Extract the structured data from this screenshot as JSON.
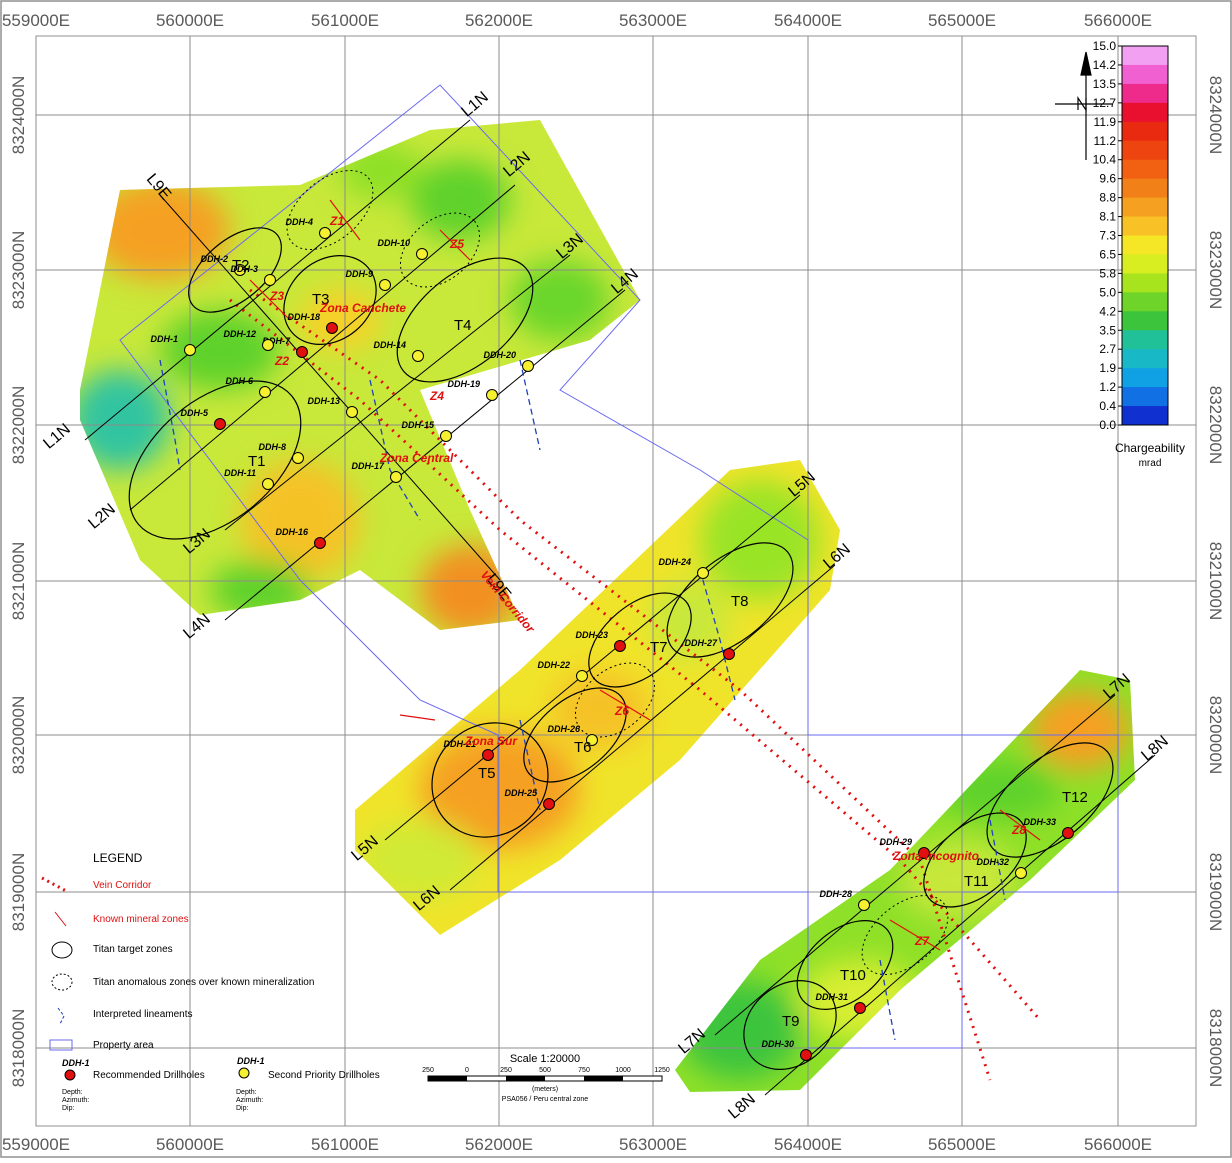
{
  "map": {
    "easting_labels": [
      "559000E",
      "560000E",
      "561000E",
      "562000E",
      "563000E",
      "564000E",
      "565000E",
      "566000E"
    ],
    "northing_labels": [
      "8318000N",
      "8319000N",
      "8320000N",
      "8321000N",
      "8322000N",
      "8323000N",
      "8324000N"
    ],
    "north_arrow_icon": "north-arrow-icon"
  },
  "colorbar": {
    "ticks": [
      "15.0",
      "14.2",
      "13.5",
      "12.7",
      "11.9",
      "11.2",
      "10.4",
      "9.6",
      "8.8",
      "8.1",
      "7.3",
      "6.5",
      "5.8",
      "5.0",
      "4.2",
      "3.5",
      "2.7",
      "1.9",
      "1.2",
      "0.4",
      "0.0"
    ],
    "colors": [
      "#f2a0f2",
      "#f060d0",
      "#ee2a8a",
      "#e8102e",
      "#ea2a10",
      "#ee4410",
      "#f26012",
      "#f28018",
      "#f5a020",
      "#f8c226",
      "#f5e626",
      "#d8ee20",
      "#a8e41e",
      "#6ed42a",
      "#3cc43c",
      "#20c098",
      "#18b8c6",
      "#10a0e4",
      "#1070e4",
      "#1030d0"
    ],
    "title": "Chargeability",
    "unit": "mrad"
  },
  "lines": [
    {
      "label": "L1N"
    },
    {
      "label": "L2N"
    },
    {
      "label": "L3N"
    },
    {
      "label": "L4N"
    },
    {
      "label": "L9E"
    },
    {
      "label": "L5N"
    },
    {
      "label": "L6N"
    },
    {
      "label": "L7N"
    },
    {
      "label": "L8N"
    }
  ],
  "targets": [
    "T1",
    "T2",
    "T3",
    "T4",
    "T5",
    "T6",
    "T7",
    "T8",
    "T9",
    "T10",
    "T11",
    "T12"
  ],
  "zones": [
    "Zona Canchete",
    "Zona Central",
    "Zona Sur",
    "Zona Incognito",
    "Vein Corridor"
  ],
  "zone_codes": [
    "Z1",
    "Z2",
    "Z3",
    "Z4",
    "Z5",
    "Z6",
    "Z7",
    "Z8"
  ],
  "drillholes": [
    "DDH-1",
    "DDH-2",
    "DDH-3",
    "DDH-4",
    "DDH-5",
    "DDH-6",
    "DDH-7",
    "DDH-8",
    "DDH-9",
    "DDH-10",
    "DDH-11",
    "DDH-12",
    "DDH-13",
    "DDH-14",
    "DDH-15",
    "DDH-16",
    "DDH-17",
    "DDH-18",
    "DDH-19",
    "DDH-20",
    "DDH-21",
    "DDH-22",
    "DDH-23",
    "DDH-24",
    "DDH-25",
    "DDH-26",
    "DDH-27",
    "DDH-28",
    "DDH-29",
    "DDH-30",
    "DDH-31",
    "DDH-32",
    "DDH-33"
  ],
  "legend": {
    "title": "LEGEND",
    "items": [
      {
        "label": "Vein Corridor"
      },
      {
        "label": "Known mineral zones"
      },
      {
        "label": "Titan target zones"
      },
      {
        "label": "Titan anomalous zones over known mineralization"
      },
      {
        "label": "Interpreted lineaments"
      },
      {
        "label": "Property area"
      },
      {
        "label": "Recommended Drillholes"
      },
      {
        "label": "Second Priority Drillholes"
      }
    ],
    "sample_hole": "DDH-1",
    "sample_meta": [
      "Depth:",
      "Azimuth:",
      "Dip:"
    ]
  },
  "scale": {
    "title": "Scale 1:20000",
    "ticks": [
      "250",
      "0",
      "250",
      "500",
      "750",
      "1000",
      "1250"
    ],
    "unit": "(meters)",
    "caption": "PSA056 / Peru central zone"
  }
}
